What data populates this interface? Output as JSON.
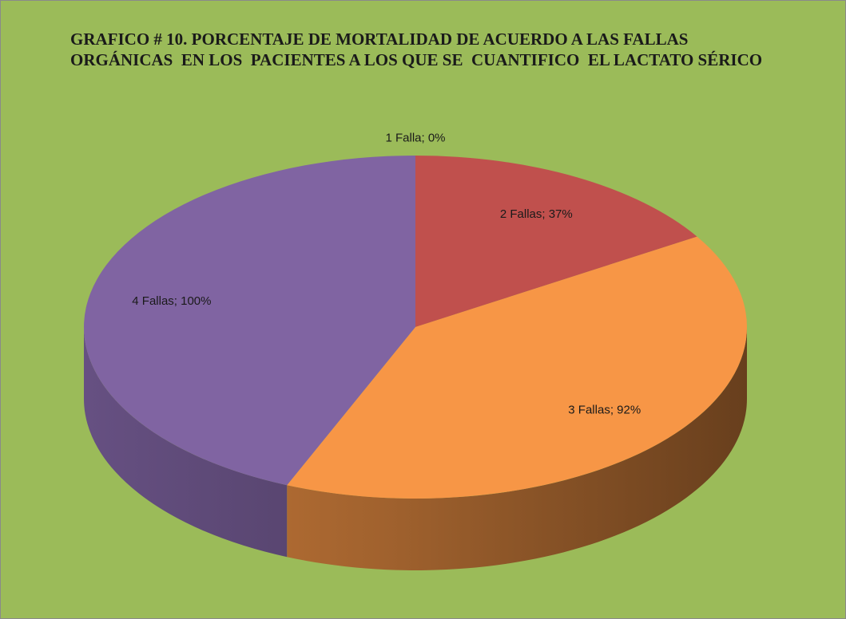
{
  "chart_data": {
    "type": "pie3d",
    "title": "GRAFICO # 10. PORCENTAJE DE MORTALIDAD DE ACUERDO A LAS FALLAS ORGÁNICAS  EN LOS  PACIENTES A LOS QUE SE  CUANTIFICO  EL LACTATO SÉRICO",
    "values": [
      0,
      37,
      92,
      100
    ],
    "value_labels": [
      "1 Falla; 0%",
      "2 Fallas; 37%",
      "3 Fallas; 92%",
      "4 Fallas; 100%"
    ],
    "colors": [
      "#4f81bd",
      "#c0504d",
      "#f79646",
      "#8064a2"
    ],
    "background": "#9bbb59"
  }
}
